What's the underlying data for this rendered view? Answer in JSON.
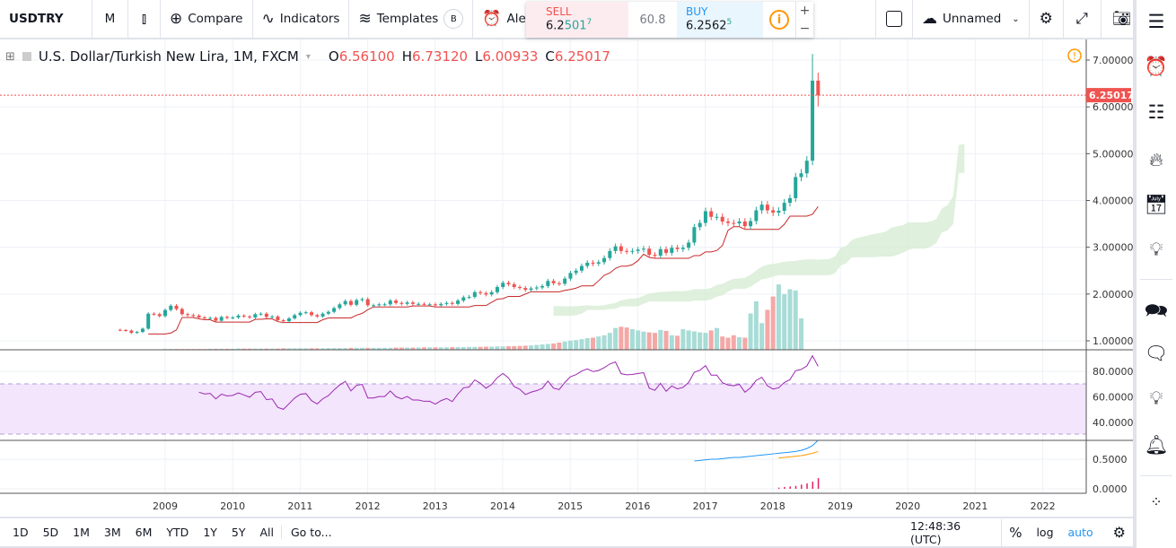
{
  "toolbar": {
    "symbol": "USDTRY",
    "interval": "M",
    "compare": "Compare",
    "indicators": "Indicators",
    "templates": "Templates",
    "templates_badge": "B",
    "alert": "Ale",
    "layout_name": "Unnamed"
  },
  "trade": {
    "sell_label": "SELL",
    "sell_main": "6.2",
    "sell_hi": "501",
    "sell_sup": "7",
    "spread": "60.8",
    "buy_label": "BUY",
    "buy_main": "6.2562",
    "buy_sup": "5",
    "plus": "+",
    "minus": "−"
  },
  "legend": {
    "title": "U.S. Dollar/Turkish New Lira, 1M, FXCM",
    "o_label": "O",
    "o": "6.56100",
    "h_label": "H",
    "h": "6.73120",
    "l_label": "L",
    "l": "6.00933",
    "c_label": "C",
    "c": "6.25017"
  },
  "price_axis": {
    "labels": [
      "7.00000",
      "6.00000",
      "5.00000",
      "4.00000",
      "3.00000",
      "2.00000",
      "1.00000"
    ],
    "last_price": "6.25017",
    "rsi_labels": [
      "80.0000",
      "60.0000",
      "40.0000"
    ],
    "ind_labels": [
      "0.5000",
      "0.0000"
    ]
  },
  "time_axis": {
    "years": [
      "2009",
      "2010",
      "2011",
      "2012",
      "2013",
      "2014",
      "2015",
      "2016",
      "2017",
      "2018",
      "2019",
      "2020",
      "2021",
      "2022"
    ]
  },
  "bottombar": {
    "ranges": [
      "1D",
      "5D",
      "1M",
      "3M",
      "6M",
      "YTD",
      "1Y",
      "5Y",
      "All"
    ],
    "goto": "Go to...",
    "time": "12:48:36 (UTC)",
    "percent": "%",
    "log": "log",
    "auto": "auto"
  },
  "colors": {
    "up": "#26a69a",
    "down": "#ef5350",
    "rsi": "#9c27b0",
    "cloud": "#d7ecd4",
    "accent": "#2196f3"
  },
  "chart_data": {
    "type": "candlestick",
    "start": "2008-05",
    "closes": [
      1.23,
      1.22,
      1.17,
      1.19,
      1.26,
      1.58,
      1.57,
      1.53,
      1.66,
      1.75,
      1.68,
      1.57,
      1.55,
      1.54,
      1.5,
      1.48,
      1.49,
      1.43,
      1.51,
      1.49,
      1.5,
      1.54,
      1.52,
      1.5,
      1.57,
      1.58,
      1.51,
      1.52,
      1.44,
      1.42,
      1.48,
      1.55,
      1.6,
      1.61,
      1.55,
      1.52,
      1.58,
      1.62,
      1.7,
      1.78,
      1.85,
      1.77,
      1.87,
      1.89,
      1.76,
      1.76,
      1.78,
      1.78,
      1.86,
      1.81,
      1.79,
      1.82,
      1.79,
      1.79,
      1.78,
      1.78,
      1.76,
      1.79,
      1.81,
      1.79,
      1.86,
      1.93,
      1.94,
      2.04,
      2.02,
      1.99,
      2.04,
      2.15,
      2.24,
      2.21,
      2.15,
      2.13,
      2.09,
      2.12,
      2.14,
      2.17,
      2.28,
      2.23,
      2.22,
      2.33,
      2.45,
      2.5,
      2.6,
      2.67,
      2.65,
      2.68,
      2.77,
      2.92,
      3.02,
      2.92,
      2.91,
      2.92,
      2.95,
      2.97,
      2.84,
      2.82,
      2.96,
      2.88,
      2.99,
      2.96,
      2.99,
      3.1,
      3.43,
      3.52,
      3.77,
      3.65,
      3.65,
      3.55,
      3.52,
      3.51,
      3.55,
      3.45,
      3.56,
      3.79,
      3.91,
      3.79,
      3.74,
      3.78,
      3.95,
      4.05,
      4.5,
      4.58,
      4.85,
      6.561,
      6.25017
    ],
    "last_candle": {
      "open": 6.561,
      "high": 6.7312,
      "low": 6.00933,
      "close": 6.25017
    },
    "max_high": 7.13,
    "volume_start": "2009-01",
    "volumes": [
      3,
      3,
      3,
      3,
      3,
      3,
      3,
      3,
      4,
      4,
      4,
      4,
      4,
      5,
      5,
      5,
      5,
      5,
      5,
      5,
      5,
      6,
      6,
      6,
      6,
      6,
      6,
      6,
      6,
      7,
      7,
      7,
      7,
      8,
      8,
      8,
      8,
      8,
      8,
      8,
      8,
      9,
      9,
      9,
      9,
      9,
      10,
      10,
      10,
      10,
      10,
      11,
      11,
      11,
      12,
      12,
      12,
      13,
      13,
      14,
      14,
      15,
      15,
      16,
      17,
      18,
      20,
      22,
      24,
      26,
      30,
      34,
      38,
      40,
      44,
      48,
      50,
      55,
      60,
      70,
      90,
      95,
      92,
      85,
      80,
      75,
      72,
      70,
      82,
      78,
      60,
      58,
      85,
      80,
      76,
      72,
      70,
      80,
      90,
      55,
      50,
      60,
      52,
      50,
      150,
      200,
      110,
      165,
      220,
      270,
      230,
      250,
      245,
      130
    ],
    "ind_blue": [
      0.47,
      0.48,
      0.49,
      0.5,
      0.5,
      0.51,
      0.52,
      0.53,
      0.53,
      0.54,
      0.55,
      0.56,
      0.57,
      0.58,
      0.59,
      0.6,
      0.61,
      0.62,
      0.63,
      0.65,
      0.68,
      0.73,
      0.82
    ],
    "ind_orange": [
      0.52,
      0.53,
      0.54,
      0.55,
      0.56,
      0.58,
      0.6,
      0.63
    ],
    "ind_bars": [
      0.02,
      0.03,
      0.04,
      0.05,
      0.07,
      0.09,
      0.12,
      0.18
    ]
  }
}
